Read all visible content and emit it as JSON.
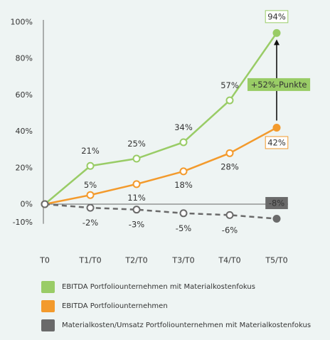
{
  "chart_data": {
    "type": "line",
    "categories": [
      "T0",
      "T1/T0",
      "T2/T0",
      "T3/T0",
      "T4/T0",
      "T5/T0"
    ],
    "ylim": [
      -10,
      100
    ],
    "yticks": [
      100,
      80,
      60,
      40,
      20,
      0,
      -10
    ],
    "ytick_labels": [
      "100%",
      "80%",
      "60%",
      "40%",
      "20%",
      "0%",
      "-10%"
    ],
    "grid": false,
    "legend_position": "bottom",
    "series": [
      {
        "name": "EBITDA Portfoliounternehmen mit Materialkostenfokus",
        "color": "#99cc66",
        "style": "solid",
        "values": [
          0,
          21,
          25,
          34,
          57,
          94
        ],
        "labels": [
          "",
          "21%",
          "25%",
          "34%",
          "57%",
          "94%"
        ]
      },
      {
        "name": "EBITDA Portfoliounternehmen",
        "color": "#f39a2c",
        "style": "solid",
        "values": [
          0,
          5,
          11,
          18,
          28,
          42
        ],
        "labels": [
          "",
          "5%",
          "11%",
          "18%",
          "28%",
          "42%"
        ]
      },
      {
        "name": "Materialkosten/Umsatz Portfoliounternehmen mit Materialkostenfokus",
        "color": "#6a6a6a",
        "style": "dashed",
        "values": [
          0,
          -2,
          -3,
          -5,
          -6,
          -8
        ],
        "labels": [
          "",
          "-2%",
          "-3%",
          "-5%",
          "-6%",
          "-8%"
        ]
      }
    ],
    "annotations": [
      {
        "text": "+52%-Punkte",
        "from_series": 1,
        "to_series": 0,
        "category_index": 5
      }
    ]
  }
}
